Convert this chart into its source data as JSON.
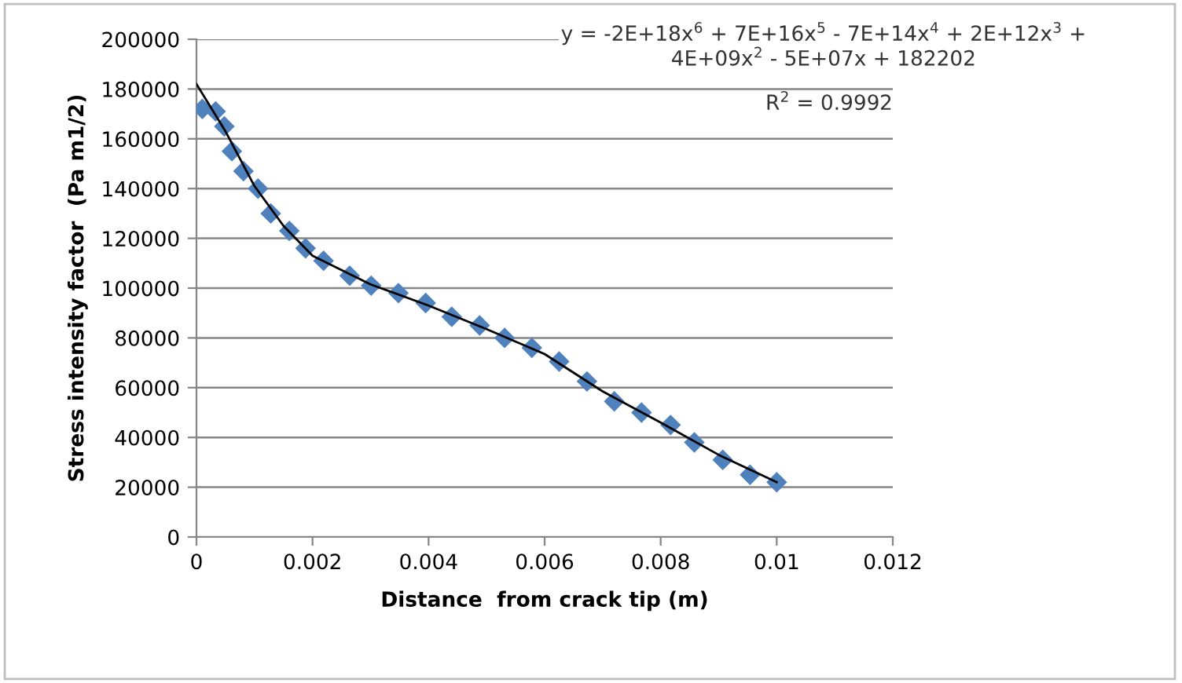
{
  "chart_data": {
    "type": "scatter",
    "xlabel": "Distance  from crack tip (m)",
    "ylabel": "Stress intensity factor  (Pa m1/2)",
    "xlim": [
      0,
      0.012
    ],
    "xticks": [
      0,
      0.002,
      0.004,
      0.006,
      0.008,
      0.01,
      0.012
    ],
    "ylim": [
      0,
      200000
    ],
    "yticks": [
      0,
      20000,
      40000,
      60000,
      80000,
      100000,
      120000,
      140000,
      160000,
      180000,
      200000
    ],
    "grid": "y",
    "legend": false,
    "annotations": [
      "y = -2E+18x$^{6}$ + 7E+16x$^{5}$ - 7E+14x$^{4}$ + 2E+12x$^{3}$ +\n4E+09x$^{2}$ - 5E+07x + 182202",
      "R$^{2}$ = 0.9992"
    ],
    "series": [
      {
        "color": "#4f81bd",
        "marker": "diamond",
        "x": [
          0.0001,
          0.00033,
          0.00048,
          0.00061,
          0.00081,
          0.00106,
          0.00128,
          0.0016,
          0.00188,
          0.00219,
          0.00264,
          0.00301,
          0.00348,
          0.00395,
          0.0044,
          0.00488,
          0.00531,
          0.00578,
          0.00625,
          0.00673,
          0.0072,
          0.00767,
          0.00817,
          0.00858,
          0.00907,
          0.00954,
          0.01
        ],
        "values": [
          172000,
          171000,
          165000,
          155000,
          147000,
          140000,
          130000,
          123000,
          116000,
          111000,
          105000,
          101000,
          98000,
          94000,
          88500,
          85000,
          80000,
          76000,
          70500,
          62500,
          54500,
          50000,
          45000,
          38000,
          31000,
          25000,
          22000
        ]
      },
      {
        "type": "line",
        "color": "#000000",
        "marker": "none",
        "line_style": "solid",
        "x": [
          0,
          0.0005,
          0.001,
          0.0015,
          0.002,
          0.003,
          0.004,
          0.005,
          0.006,
          0.007,
          0.008,
          0.009,
          0.01
        ],
        "values": [
          182000,
          163000,
          141000,
          125000,
          113000,
          101500,
          93000,
          83500,
          73500,
          58500,
          46000,
          33000,
          22000
        ]
      }
    ]
  }
}
